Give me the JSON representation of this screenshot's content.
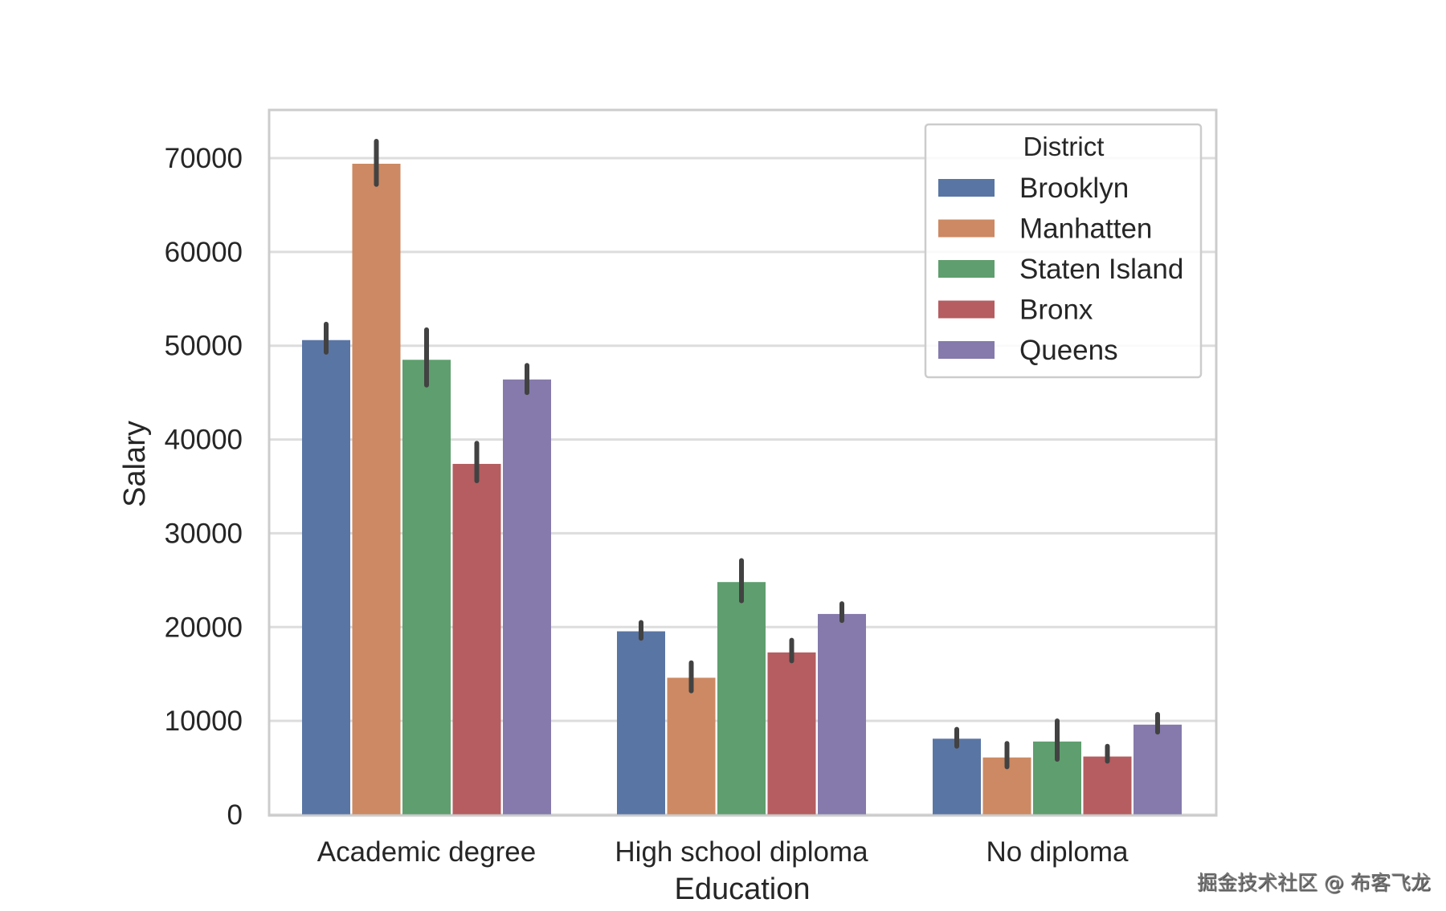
{
  "chart_data": {
    "type": "bar",
    "xlabel": "Education",
    "ylabel": "Salary",
    "categories": [
      "Academic degree",
      "High school diploma",
      "No diploma"
    ],
    "ylim": [
      0,
      75000
    ],
    "yticks": [
      0,
      10000,
      20000,
      30000,
      40000,
      50000,
      60000,
      70000
    ],
    "grid": true,
    "legend": {
      "title": "District",
      "placement": "top-right"
    },
    "series": [
      {
        "name": "Brooklyn",
        "color": "#5975a4",
        "values": [
          50600,
          19550,
          8100
        ],
        "ci": [
          [
            49300,
            52300
          ],
          [
            18800,
            20500
          ],
          [
            7300,
            9100
          ]
        ]
      },
      {
        "name": "Manhatten",
        "color": "#cc8963",
        "values": [
          69400,
          14600,
          6100
        ],
        "ci": [
          [
            67200,
            71800
          ],
          [
            13200,
            16200
          ],
          [
            5100,
            7600
          ]
        ]
      },
      {
        "name": "Staten Island",
        "color": "#5f9e6e",
        "values": [
          48500,
          24800,
          7800
        ],
        "ci": [
          [
            45800,
            51700
          ],
          [
            22800,
            27100
          ],
          [
            5900,
            10000
          ]
        ]
      },
      {
        "name": "Bronx",
        "color": "#b55d60",
        "values": [
          37400,
          17300,
          6200
        ],
        "ci": [
          [
            35600,
            39600
          ],
          [
            16400,
            18600
          ],
          [
            5700,
            7300
          ]
        ]
      },
      {
        "name": "Queens",
        "color": "#857aab",
        "values": [
          46400,
          21400,
          9600
        ],
        "ci": [
          [
            45000,
            47900
          ],
          [
            20700,
            22500
          ],
          [
            8800,
            10700
          ]
        ]
      }
    ]
  },
  "watermark": "掘金技术社区 @ 布客飞龙"
}
